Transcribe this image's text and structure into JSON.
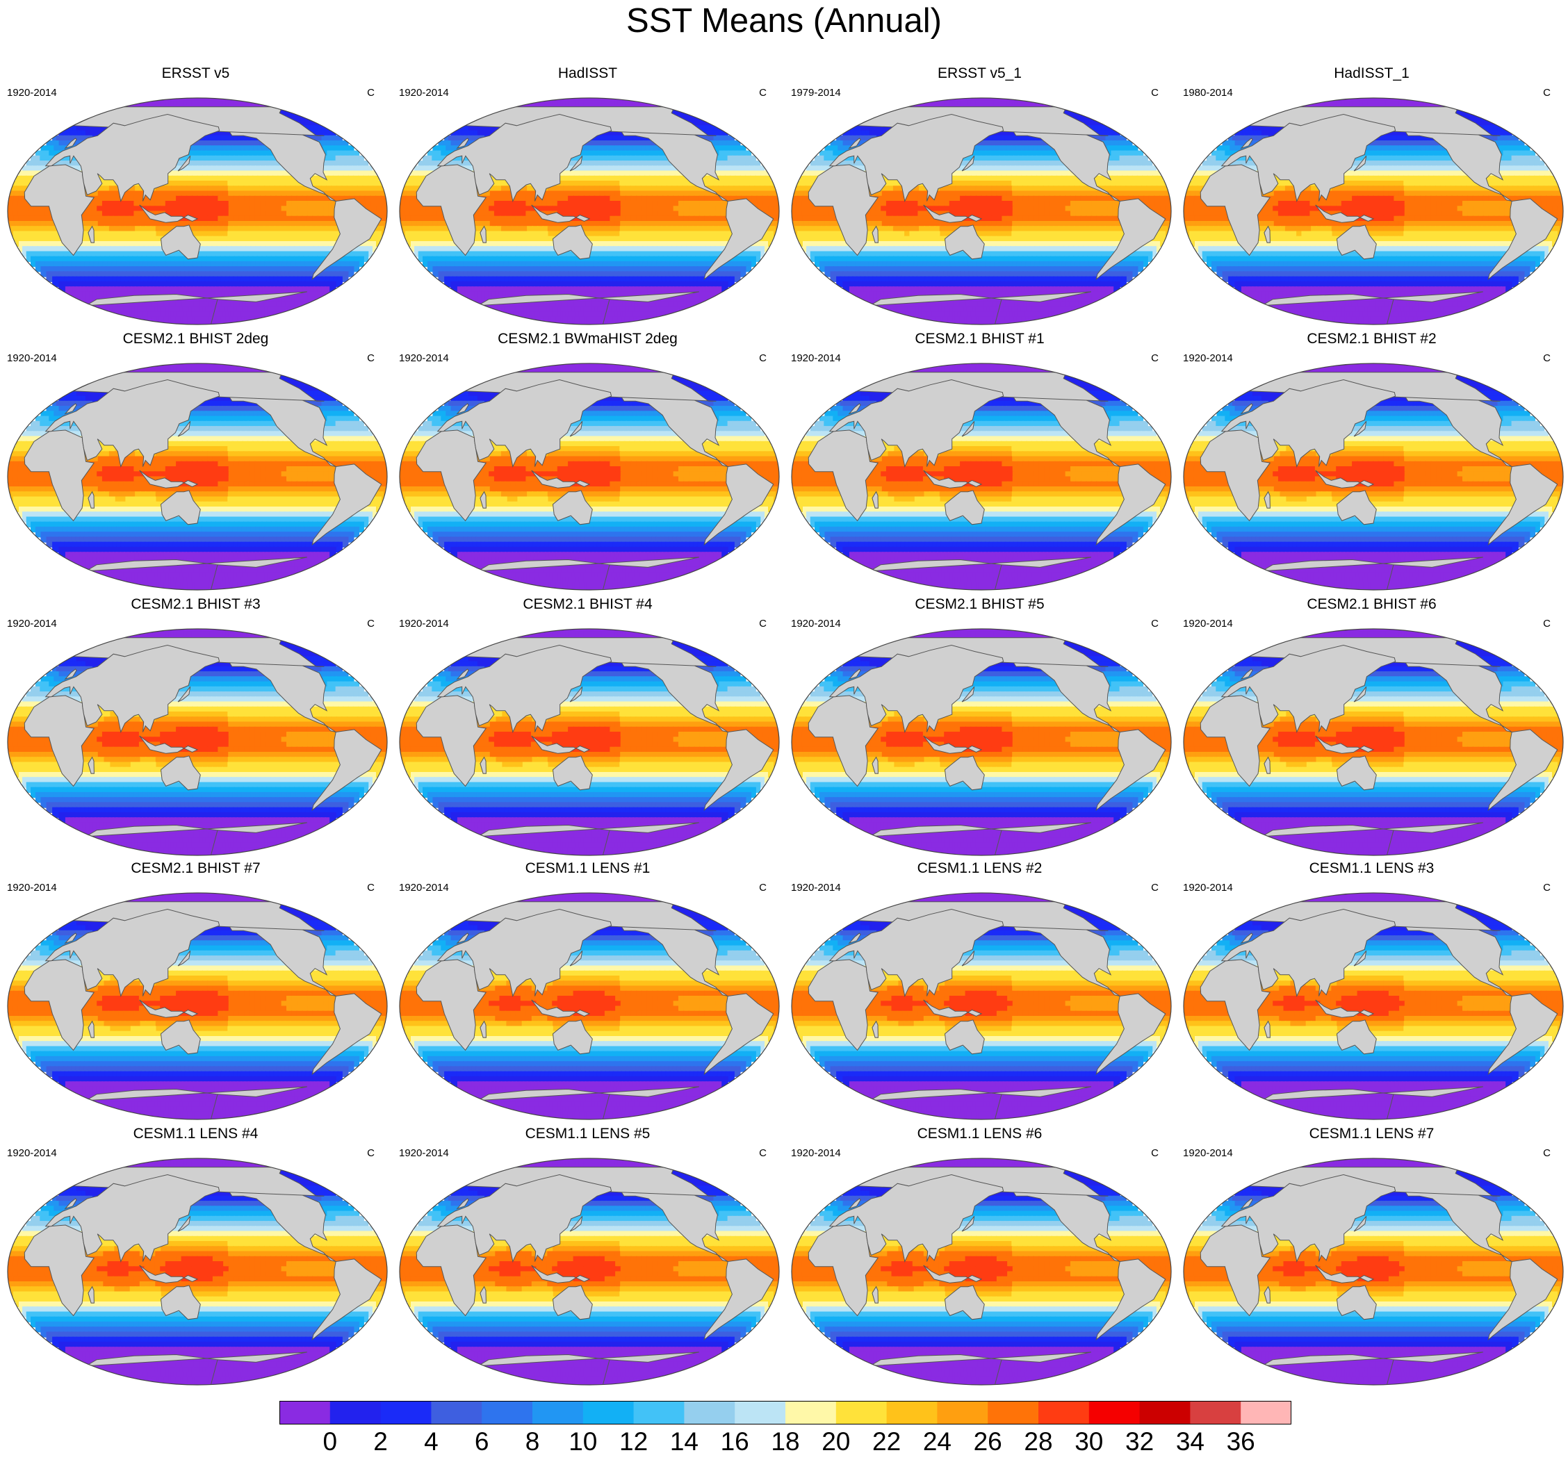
{
  "chart_data": {
    "type": "contour-map-grid",
    "title": "SST Means (Annual)",
    "units": "C",
    "colorbar": {
      "levels": [
        0,
        2,
        4,
        6,
        8,
        10,
        12,
        14,
        16,
        18,
        20,
        22,
        24,
        26,
        28,
        30,
        32,
        34,
        36
      ],
      "tick_labels": [
        "0",
        "2",
        "4",
        "6",
        "8",
        "10",
        "12",
        "14",
        "16",
        "18",
        "20",
        "22",
        "24",
        "26",
        "28",
        "30",
        "32",
        "34",
        "36"
      ],
      "colors": [
        "#8a2be2",
        "#2222ee",
        "#1a2bf8",
        "#3e5fe0",
        "#2e74ee",
        "#2196f3",
        "#12b0f5",
        "#42c2f7",
        "#95cfee",
        "#bce4f5",
        "#fff8a8",
        "#ffe23a",
        "#ffc21a",
        "#ff9f10",
        "#ff7308",
        "#ff3c12",
        "#f50000",
        "#cc0000",
        "#d84040",
        "#ffb6b6"
      ]
    },
    "panels": [
      {
        "title": "ERSST v5",
        "period": "1920-2014",
        "units": "C",
        "warm": 0.95
      },
      {
        "title": "HadISST",
        "period": "1920-2014",
        "units": "C",
        "warm": 0.95
      },
      {
        "title": "ERSST v5_1",
        "period": "1979-2014",
        "units": "C",
        "warm": 0.98
      },
      {
        "title": "HadISST_1",
        "period": "1980-2014",
        "units": "C",
        "warm": 0.98
      },
      {
        "title": "CESM2.1 BHIST 2deg",
        "period": "1920-2014",
        "units": "C",
        "warm": 1.0
      },
      {
        "title": "CESM2.1 BWmaHIST 2deg",
        "period": "1920-2014",
        "units": "C",
        "warm": 1.0
      },
      {
        "title": "CESM2.1 BHIST #1",
        "period": "1920-2014",
        "units": "C",
        "warm": 1.1
      },
      {
        "title": "CESM2.1 BHIST #2",
        "period": "1920-2014",
        "units": "C",
        "warm": 1.1
      },
      {
        "title": "CESM2.1 BHIST #3",
        "period": "1920-2014",
        "units": "C",
        "warm": 1.1
      },
      {
        "title": "CESM2.1 BHIST #4",
        "period": "1920-2014",
        "units": "C",
        "warm": 1.1
      },
      {
        "title": "CESM2.1 BHIST #5",
        "period": "1920-2014",
        "units": "C",
        "warm": 1.1
      },
      {
        "title": "CESM2.1 BHIST #6",
        "period": "1920-2014",
        "units": "C",
        "warm": 1.1
      },
      {
        "title": "CESM2.1 BHIST #7",
        "period": "1920-2014",
        "units": "C",
        "warm": 1.1
      },
      {
        "title": "CESM1.1 LENS #1",
        "period": "1920-2014",
        "units": "C",
        "warm": 0.85
      },
      {
        "title": "CESM1.1 LENS #2",
        "period": "1920-2014",
        "units": "C",
        "warm": 0.85
      },
      {
        "title": "CESM1.1 LENS #3",
        "period": "1920-2014",
        "units": "C",
        "warm": 0.85
      },
      {
        "title": "CESM1.1 LENS #4",
        "period": "1920-2014",
        "units": "C",
        "warm": 0.85
      },
      {
        "title": "CESM1.1 LENS #5",
        "period": "1920-2014",
        "units": "C",
        "warm": 0.85
      },
      {
        "title": "CESM1.1 LENS #6",
        "period": "1920-2014",
        "units": "C",
        "warm": 0.85
      },
      {
        "title": "CESM1.1 LENS #7",
        "period": "1920-2014",
        "units": "C",
        "warm": 0.85
      }
    ],
    "land_color": "#d0d0d0",
    "grid": false
  }
}
